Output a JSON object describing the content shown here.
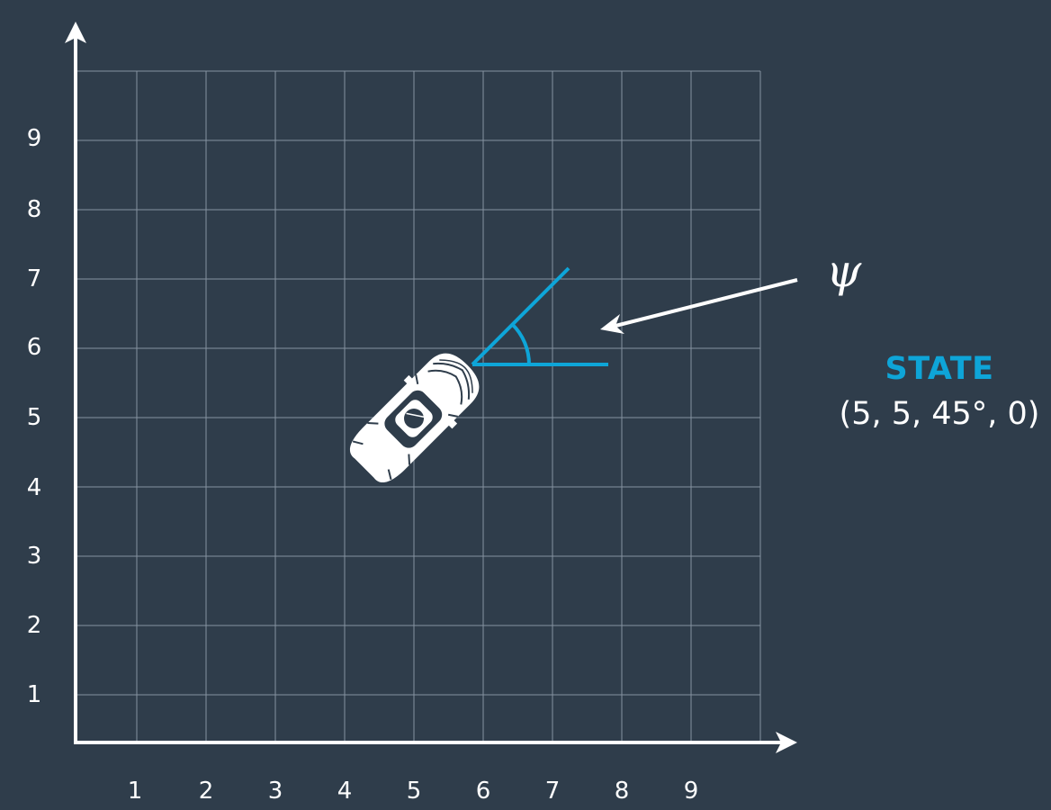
{
  "grid": {
    "x_ticks": [
      "1",
      "2",
      "3",
      "4",
      "5",
      "6",
      "7",
      "8",
      "9"
    ],
    "y_ticks": [
      "1",
      "2",
      "3",
      "4",
      "5",
      "6",
      "7",
      "8",
      "9"
    ]
  },
  "heading_angle": {
    "symbol": "ψ",
    "degrees": 45
  },
  "vehicle": {
    "x": 5,
    "y": 5
  },
  "state": {
    "title": "STATE",
    "value": "(5, 5, 45°, 0)"
  },
  "colors": {
    "background": "#2f3d4b",
    "grid": "#8592a0",
    "axis": "#ffffff",
    "accent": "#0ea5d8"
  }
}
